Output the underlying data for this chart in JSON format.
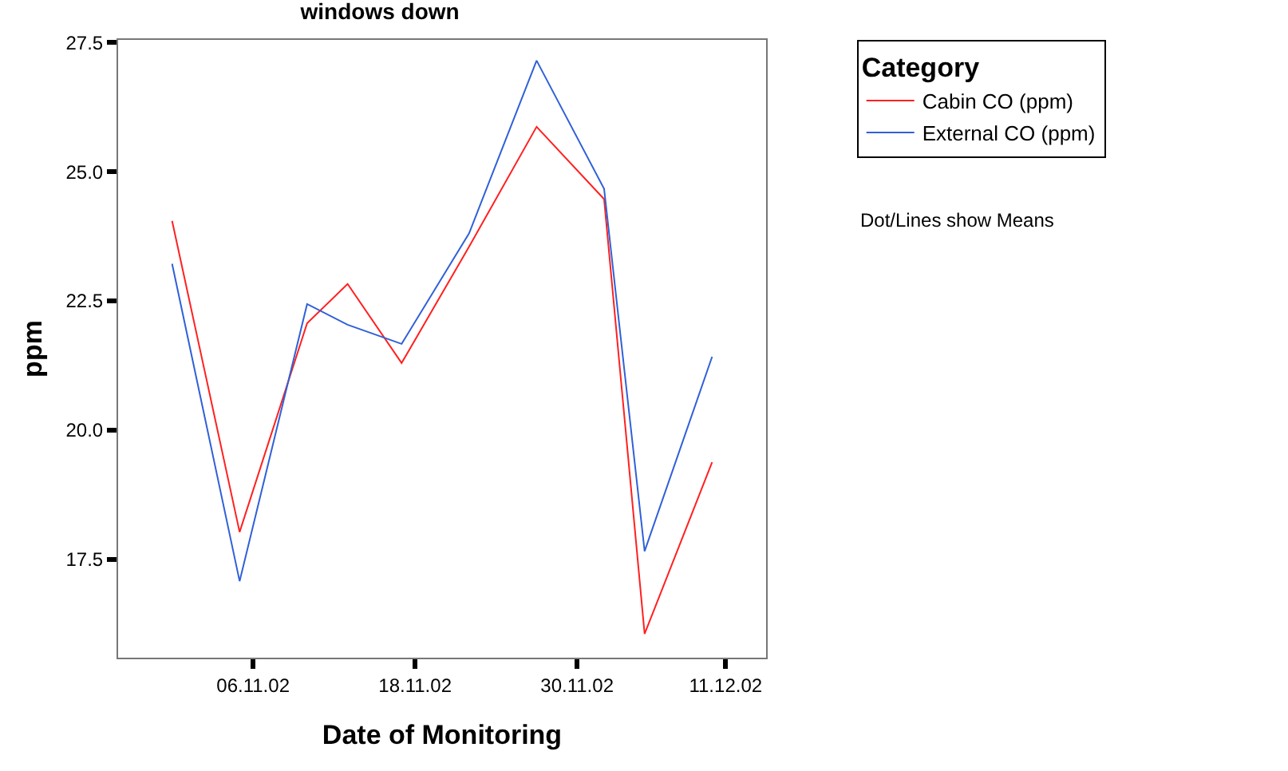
{
  "chart_data": {
    "type": "line",
    "title": "windows down",
    "xlabel": "Date of Monitoring",
    "ylabel": "ppm",
    "legend_title": "Category",
    "legend": "right",
    "annotations": [
      "Dot/Lines show Means"
    ],
    "x": [
      "--10-31",
      "--11-05",
      "--11-10",
      "--11-13",
      "--11-17",
      "--11-22",
      "--11-27",
      "--12-02",
      "--12-05",
      "--12-10"
    ],
    "series": [
      {
        "name": "Cabin CO (ppm)",
        "color": "#ff2020",
        "values": [
          24.05,
          18.03,
          22.07,
          22.83,
          21.3,
          23.55,
          25.87,
          24.47,
          16.06,
          19.38
        ]
      },
      {
        "name": "External CO (ppm)",
        "color": "#3060d8",
        "values": [
          23.22,
          17.08,
          22.44,
          22.04,
          21.67,
          23.81,
          27.15,
          24.67,
          17.66,
          21.42
        ]
      }
    ],
    "xlim": [
      "--10-27",
      "--12-14"
    ],
    "xticks": [
      {
        "value": "--11-06",
        "label": "06.11.02"
      },
      {
        "value": "--11-18",
        "label": "18.11.02"
      },
      {
        "value": "--11-30",
        "label": "30.11.02"
      },
      {
        "value": "--12-11",
        "label": "11.12.02"
      }
    ],
    "ylim": [
      15.6,
      27.55
    ],
    "yticks": [
      {
        "value": 17.5,
        "label": "17.5"
      },
      {
        "value": 20,
        "label": "20.0"
      },
      {
        "value": 22.5,
        "label": "22.5"
      },
      {
        "value": 25,
        "label": "25.0"
      },
      {
        "value": 27.5,
        "label": "27.5"
      }
    ],
    "grid": false,
    "marker": "none",
    "line_style": "solid"
  }
}
